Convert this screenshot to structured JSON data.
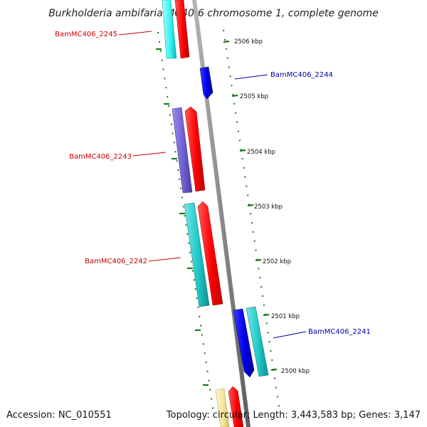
{
  "title": "Burkholderia ambifaria MC40-6 chromosome 1, complete genome",
  "footer": {
    "accession": "Accession: NC_010551",
    "summary": "Topology: circular; Length: 3,443,583 bp; Genes: 3,147"
  },
  "ticks": [
    {
      "label": "2506 kbp"
    },
    {
      "label": "2505 kbp"
    },
    {
      "label": "2504 kbp"
    },
    {
      "label": "2503 kbp"
    },
    {
      "label": "2502 kbp"
    },
    {
      "label": "2501 kbp"
    },
    {
      "label": "2500 kbp"
    }
  ],
  "genes": [
    {
      "label": "BamMC406_2245",
      "color": "#cc0000"
    },
    {
      "label": "BamMC406_2244",
      "color": "#0000aa"
    },
    {
      "label": "BamMC406_2243",
      "color": "#cc0000"
    },
    {
      "label": "BamMC406_2242",
      "color": "#cc0000"
    },
    {
      "label": "BamMC406_2241",
      "color": "#0000aa"
    }
  ],
  "colors": {
    "backbone": "#8c8c8c",
    "ticks": "#1a7a1a",
    "cds_forward": "#ff0000",
    "cds_reverse": "#0000ff",
    "rna_cyan": "#2ecfcf",
    "rna_purple": "#7a6ad6",
    "misc_yellow": "#f2e6a0"
  }
}
